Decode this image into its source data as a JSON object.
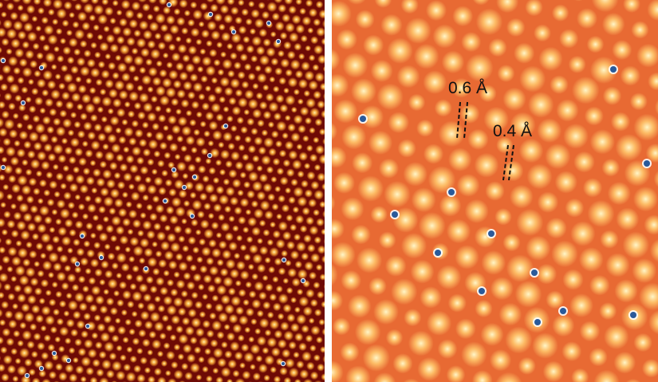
{
  "colors": {
    "background": "#ffffff",
    "left_background": "#6e0a05",
    "right_background": "#e86a33",
    "spot_core": "#fff3b0",
    "spot_mid": "#ffb03a",
    "vacancy": "#2a5a9a",
    "annotation": "#111111"
  },
  "panels": {
    "left": {
      "content": "moire-atomic-lattice-low-magnification"
    },
    "right": {
      "content": "moire-atomic-lattice-high-magnification"
    }
  },
  "annotations": {
    "label_a": "0.6 Å",
    "label_b": "0.4 Å"
  }
}
